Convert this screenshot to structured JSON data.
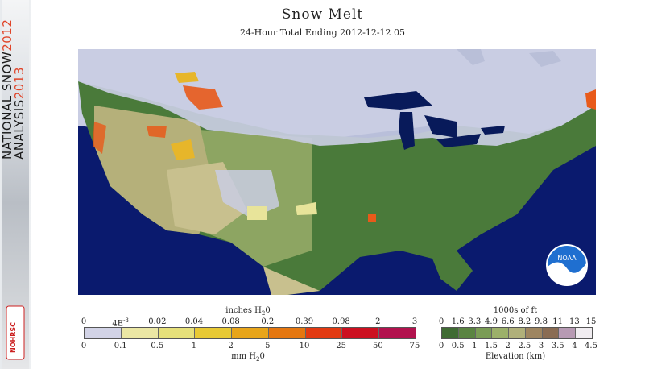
{
  "banner": {
    "title_line1": "NATIONAL SNOW",
    "year1": "2012",
    "title_line2": "ANALYSIS",
    "year2": "2013",
    "logo_text": "NOHRSC"
  },
  "header": {
    "title": "Snow Melt",
    "subtitle": "24-Hour Total Ending 2012-12-12 05"
  },
  "map": {
    "logo_text": "NOAA",
    "colors": {
      "ocean": "#0a1a6e",
      "no_snow_land_low": "#4a7a3a",
      "no_snow_land_mid": "#8da562",
      "no_snow_land_high": "#c8c08e",
      "snow_cover": "#c9cde3",
      "lakes": "#081a5a",
      "melt_low": "#e8e49a",
      "melt_mid": "#e7b62a",
      "melt_high": "#e85a1a"
    }
  },
  "melt_legend": {
    "top_label": "inches H",
    "top_label_sub": "2",
    "top_label_end": "0",
    "top_ticks": [
      "0",
      "4E",
      "0.02",
      "0.04",
      "0.08",
      "0.2",
      "0.39",
      "0.98",
      "2",
      "3"
    ],
    "top_tick_exp": "-3",
    "bottom_ticks": [
      "0",
      "0.1",
      "0.5",
      "1",
      "2",
      "5",
      "10",
      "25",
      "50",
      "75"
    ],
    "bottom_label": "mm H",
    "bottom_label_sub": "2",
    "bottom_label_end": "0",
    "colors": [
      "#d2d3e6",
      "#ebe7a4",
      "#e6e07a",
      "#e8c934",
      "#e8a51a",
      "#e57710",
      "#e23a12",
      "#cc1020",
      "#b2124e"
    ]
  },
  "elev_legend": {
    "top_label": "1000s of ft",
    "top_ticks": [
      "0",
      "1.6",
      "3.3",
      "4.9",
      "6.6",
      "8.2",
      "9.8",
      "11",
      "13",
      "15"
    ],
    "bottom_ticks": [
      "0",
      "0.5",
      "1",
      "1.5",
      "2",
      "2.5",
      "3",
      "3.5",
      "4",
      "4.5"
    ],
    "bottom_label": "Elevation (km)",
    "colors": [
      "#3f6b33",
      "#5a8441",
      "#7a9c55",
      "#9cb06a",
      "#b0b07a",
      "#9e8560",
      "#8a6c53",
      "#b79ab3",
      "#f0ecf0"
    ]
  }
}
